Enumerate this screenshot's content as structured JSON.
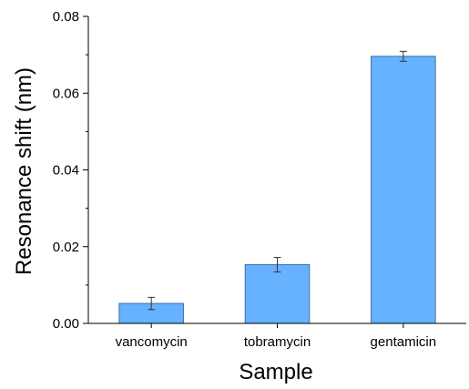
{
  "chart_data": {
    "type": "bar",
    "title": "",
    "xlabel": "Sample",
    "ylabel": "Resonance  shift (nm)",
    "categories": [
      "vancomycin",
      "tobramycin",
      "gentamicin"
    ],
    "values": [
      0.0052,
      0.0153,
      0.0696
    ],
    "errors": [
      0.0016,
      0.0019,
      0.0013
    ],
    "ylim": [
      0,
      0.08
    ],
    "yticks": [
      0,
      0.02,
      0.04,
      0.06,
      0.08
    ],
    "ytick_labels": [
      "0.00",
      "0.02",
      "0.04",
      "0.06",
      "0.08"
    ],
    "grid": false,
    "legend": "none",
    "colors": {
      "bar_fill": "#66b2ff",
      "bar_stroke": "#3a6fa8",
      "axis": "#000000",
      "error_bar": "#333333"
    }
  }
}
